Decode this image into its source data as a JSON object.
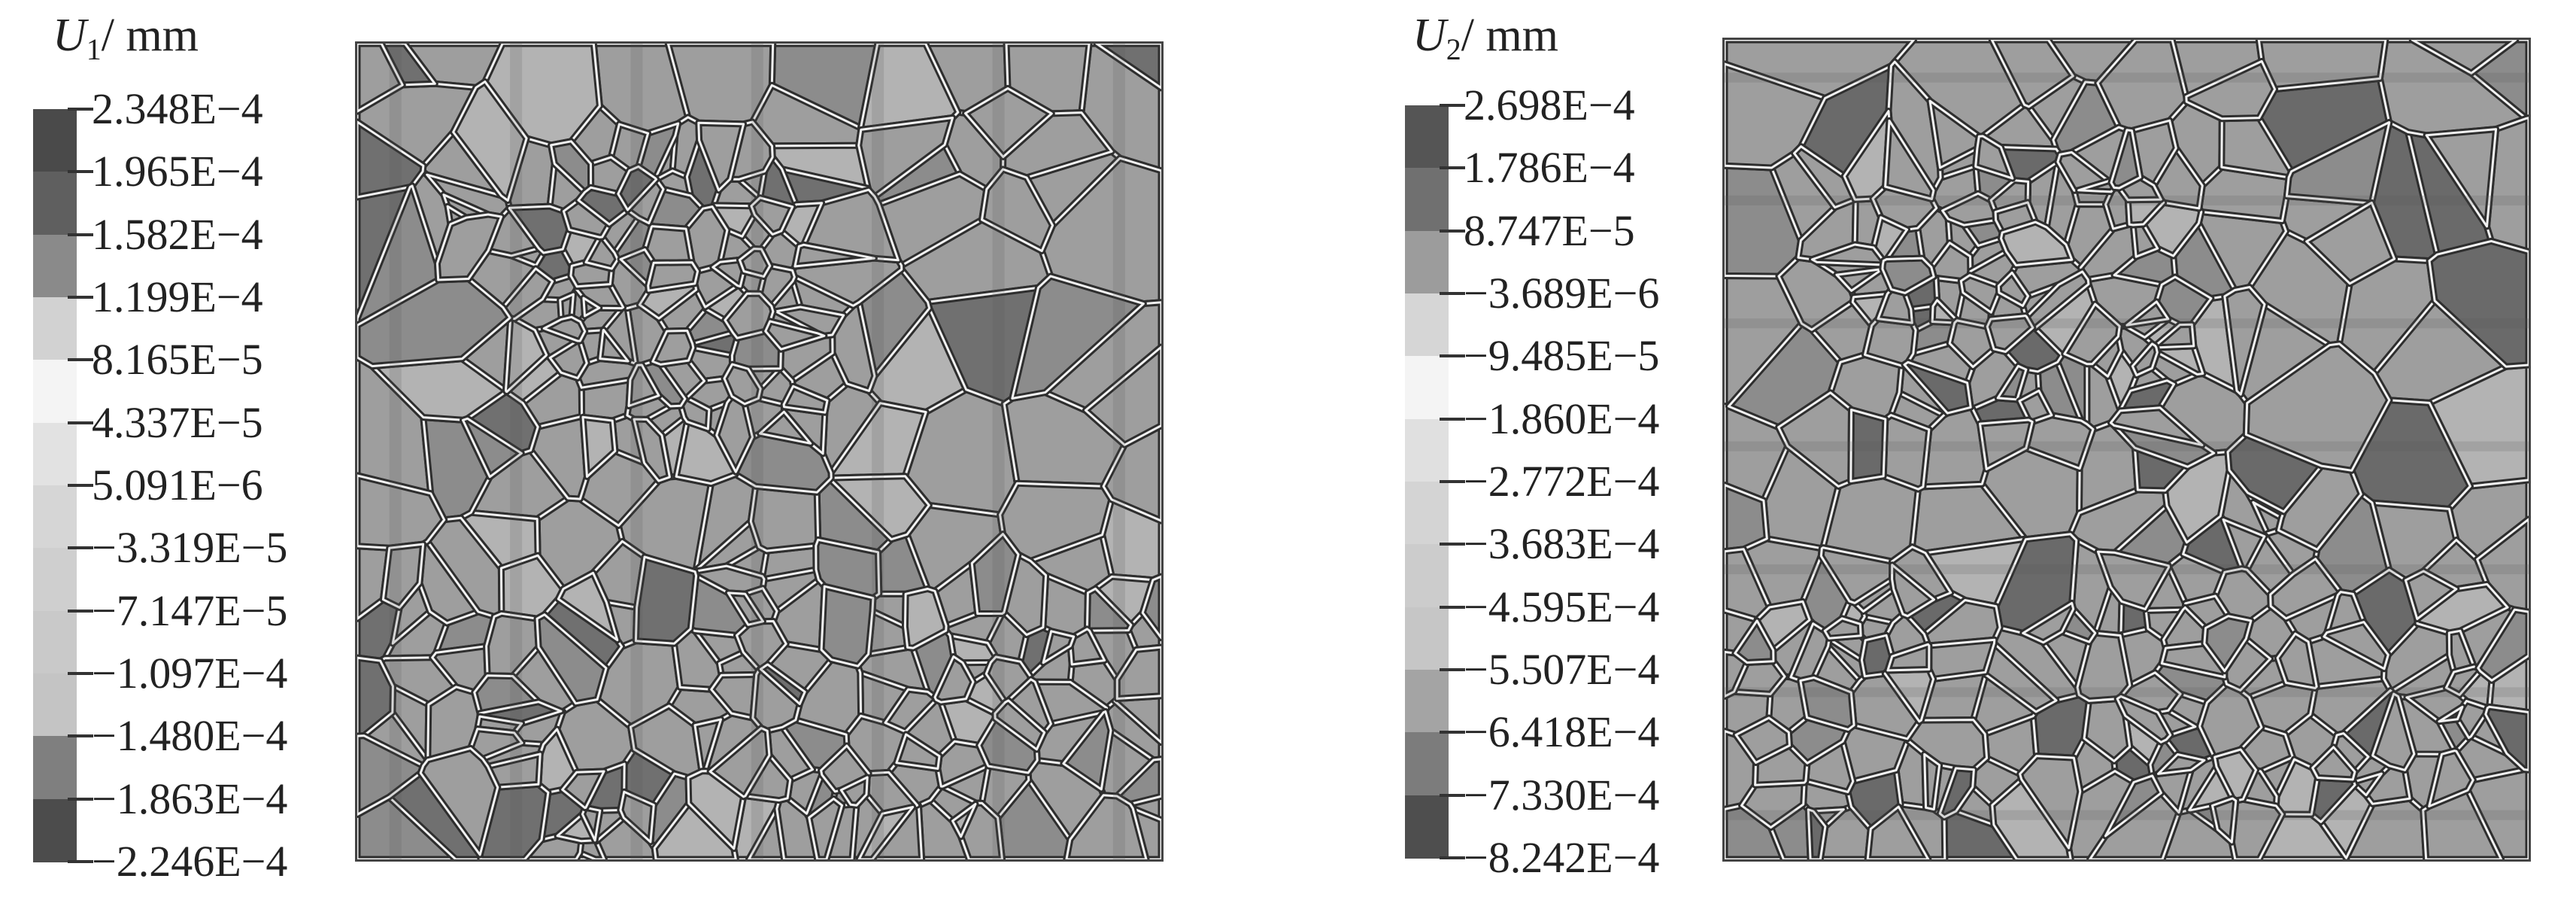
{
  "panels": [
    {
      "id": "u1",
      "symbol": "U",
      "subscript": "1",
      "unit": "/ mm",
      "legend_values": [
        "2.348E−4",
        "1.965E−4",
        "1.582E−4",
        "1.199E−4",
        "8.165E−5",
        "4.337E−5",
        "5.091E−6",
        "−3.319E−5",
        "−7.147E−5",
        "−1.097E−4",
        "−1.480E−4",
        "−1.863E−4",
        "−2.246E−4"
      ],
      "legend_colors": [
        "#4a4a4a",
        "#5f5f5f",
        "#8a8a8a",
        "#d2d2d2",
        "#f4f4f4",
        "#e2e2e2",
        "#d6d6d6",
        "#cfcfcf",
        "#c9c9c9",
        "#c4c4c4",
        "#7f7f7f",
        "#4c4c4c",
        "#2a2a2a"
      ],
      "base_color": "#9e9e9e",
      "band_orientation": "vertical"
    },
    {
      "id": "u2",
      "symbol": "U",
      "subscript": "2",
      "unit": "/ mm",
      "legend_values": [
        "2.698E−4",
        "1.786E−4",
        "8.747E−5",
        "−3.689E−6",
        "−9.485E−5",
        "−1.860E−4",
        "−2.772E−4",
        "−3.683E−4",
        "−4.595E−4",
        "−5.507E−4",
        "−6.418E−4",
        "−7.330E−4",
        "−8.242E−4"
      ],
      "legend_colors": [
        "#555555",
        "#707070",
        "#9c9c9c",
        "#d6d6d6",
        "#f4f4f4",
        "#e0e0e0",
        "#d4d4d4",
        "#cccccc",
        "#c6c6c6",
        "#a4a4a4",
        "#7c7c7c",
        "#4e4e4e",
        "#2a2a2a"
      ],
      "base_color": "#9e9e9e",
      "band_orientation": "horizontal"
    }
  ]
}
